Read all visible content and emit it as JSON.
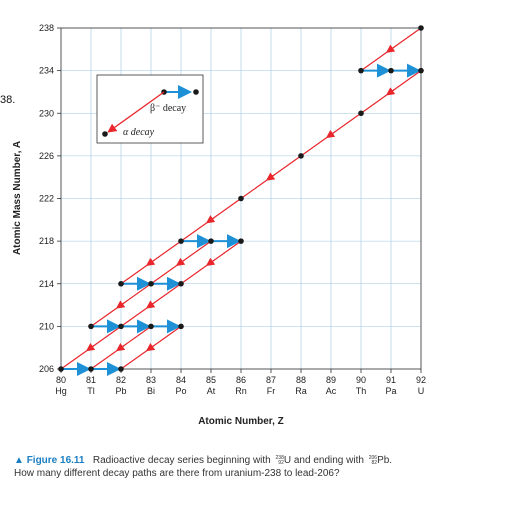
{
  "stray_text": "38.",
  "chart_data": {
    "type": "scatter",
    "xlabel": "Atomic Number, Z",
    "ylabel": "Atomic Mass Number, A",
    "xlim": [
      80,
      92
    ],
    "ylim": [
      206,
      238
    ],
    "x_ticks": [
      {
        "value": 80,
        "label": "80",
        "symbol": "Hg"
      },
      {
        "value": 81,
        "label": "81",
        "symbol": "Tl"
      },
      {
        "value": 82,
        "label": "82",
        "symbol": "Pb"
      },
      {
        "value": 83,
        "label": "83",
        "symbol": "Bi"
      },
      {
        "value": 84,
        "label": "84",
        "symbol": "Po"
      },
      {
        "value": 85,
        "label": "85",
        "symbol": "At"
      },
      {
        "value": 86,
        "label": "86",
        "symbol": "Rn"
      },
      {
        "value": 87,
        "label": "87",
        "symbol": "Fr"
      },
      {
        "value": 88,
        "label": "88",
        "symbol": "Ra"
      },
      {
        "value": 89,
        "label": "89",
        "symbol": "Ac"
      },
      {
        "value": 90,
        "label": "90",
        "symbol": "Th"
      },
      {
        "value": 91,
        "label": "91",
        "symbol": "Pa"
      },
      {
        "value": 92,
        "label": "92",
        "symbol": "U"
      }
    ],
    "y_ticks": [
      206,
      210,
      214,
      218,
      222,
      226,
      230,
      234,
      238
    ],
    "grid": true,
    "colors": {
      "alpha": "#e8262c",
      "beta": "#1e90d6",
      "grid": "#9fc6e0",
      "point": "#1a1a1a"
    },
    "nuclides": [
      {
        "z": 92,
        "a": 238
      },
      {
        "z": 90,
        "a": 234
      },
      {
        "z": 91,
        "a": 234
      },
      {
        "z": 92,
        "a": 234
      },
      {
        "z": 90,
        "a": 230
      },
      {
        "z": 88,
        "a": 226
      },
      {
        "z": 86,
        "a": 222
      },
      {
        "z": 84,
        "a": 218
      },
      {
        "z": 85,
        "a": 218
      },
      {
        "z": 86,
        "a": 218
      },
      {
        "z": 82,
        "a": 214
      },
      {
        "z": 83,
        "a": 214
      },
      {
        "z": 84,
        "a": 214
      },
      {
        "z": 81,
        "a": 210
      },
      {
        "z": 82,
        "a": 210
      },
      {
        "z": 83,
        "a": 210
      },
      {
        "z": 84,
        "a": 210
      },
      {
        "z": 80,
        "a": 206
      },
      {
        "z": 81,
        "a": 206
      },
      {
        "z": 82,
        "a": 206
      }
    ],
    "alpha_decays": [
      {
        "from": [
          92,
          238
        ],
        "to": [
          90,
          234
        ]
      },
      {
        "from": [
          92,
          234
        ],
        "to": [
          90,
          230
        ]
      },
      {
        "from": [
          90,
          230
        ],
        "to": [
          88,
          226
        ]
      },
      {
        "from": [
          88,
          226
        ],
        "to": [
          86,
          222
        ]
      },
      {
        "from": [
          86,
          222
        ],
        "to": [
          84,
          218
        ]
      },
      {
        "from": [
          84,
          218
        ],
        "to": [
          82,
          214
        ]
      },
      {
        "from": [
          85,
          218
        ],
        "to": [
          83,
          214
        ]
      },
      {
        "from": [
          86,
          218
        ],
        "to": [
          84,
          214
        ]
      },
      {
        "from": [
          83,
          214
        ],
        "to": [
          81,
          210
        ]
      },
      {
        "from": [
          84,
          214
        ],
        "to": [
          82,
          210
        ]
      },
      {
        "from": [
          82,
          210
        ],
        "to": [
          80,
          206
        ]
      },
      {
        "from": [
          83,
          210
        ],
        "to": [
          81,
          206
        ]
      },
      {
        "from": [
          84,
          210
        ],
        "to": [
          82,
          206
        ]
      }
    ],
    "beta_decays": [
      {
        "from": [
          90,
          234
        ],
        "to": [
          91,
          234
        ]
      },
      {
        "from": [
          91,
          234
        ],
        "to": [
          92,
          234
        ]
      },
      {
        "from": [
          84,
          218
        ],
        "to": [
          85,
          218
        ]
      },
      {
        "from": [
          85,
          218
        ],
        "to": [
          86,
          218
        ]
      },
      {
        "from": [
          82,
          214
        ],
        "to": [
          83,
          214
        ]
      },
      {
        "from": [
          83,
          214
        ],
        "to": [
          84,
          214
        ]
      },
      {
        "from": [
          81,
          210
        ],
        "to": [
          82,
          210
        ]
      },
      {
        "from": [
          82,
          210
        ],
        "to": [
          83,
          210
        ]
      },
      {
        "from": [
          83,
          210
        ],
        "to": [
          84,
          210
        ]
      },
      {
        "from": [
          80,
          206
        ],
        "to": [
          81,
          206
        ]
      },
      {
        "from": [
          81,
          206
        ],
        "to": [
          82,
          206
        ]
      }
    ],
    "legend": {
      "beta_label": "β⁻ decay",
      "alpha_label": "α decay",
      "placement": "top-left"
    }
  },
  "caption": {
    "marker": "▲",
    "figure_label": "Figure 16.11",
    "text_part1": "Radioactive decay series beginning with",
    "u_mass": "238",
    "u_atomic": "92",
    "u_symbol": "U",
    "text_part2": "and ending with",
    "pb_mass": "206",
    "pb_atomic": "82",
    "pb_symbol": "Pb.",
    "line2": "How many different decay paths are there from uranium-238 to lead-206?"
  }
}
